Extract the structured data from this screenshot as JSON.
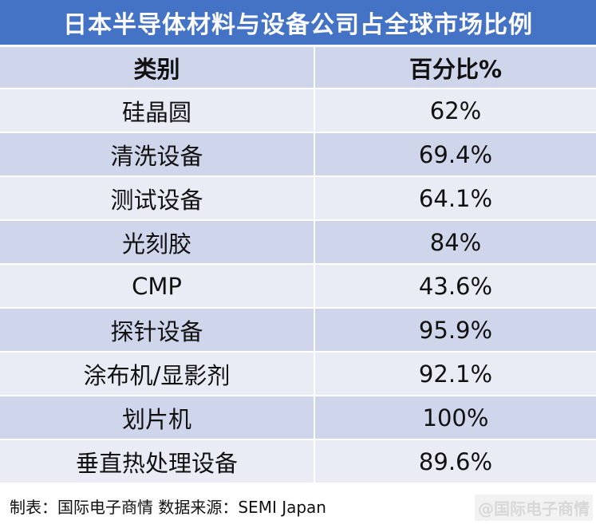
{
  "title": "日本半导体材料与设备公司占全球市场比例",
  "table": {
    "headers": [
      "类别",
      "百分比%"
    ],
    "rows": [
      {
        "category": "硅晶圆",
        "percent": "62%"
      },
      {
        "category": "清洗设备",
        "percent": "69.4%"
      },
      {
        "category": "测试设备",
        "percent": "64.1%"
      },
      {
        "category": "光刻胶",
        "percent": "84%"
      },
      {
        "category": "CMP",
        "percent": "43.6%"
      },
      {
        "category": "探针设备",
        "percent": "95.9%"
      },
      {
        "category": "涂布机/显影剂",
        "percent": "92.1%"
      },
      {
        "category": "划片机",
        "percent": "100%"
      },
      {
        "category": "垂直热处理设备",
        "percent": "89.6%"
      }
    ]
  },
  "footer": {
    "source": "制表：国际电子商情 数据来源：SEMI Japan",
    "watermark": "@国际电子商情"
  },
  "colors": {
    "title_bg": "#4472c4",
    "row_dark": "#cfd5ea",
    "row_light": "#e9ebf5"
  }
}
